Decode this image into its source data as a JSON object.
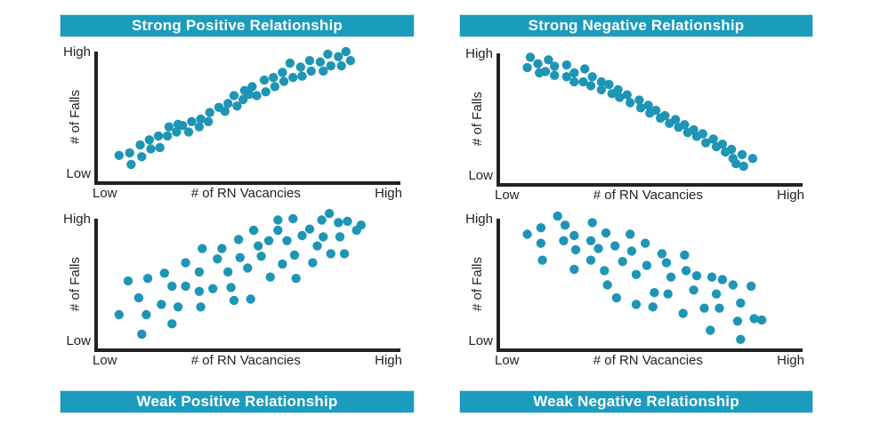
{
  "figure": {
    "background": "#ffffff",
    "accent_teal": "#1b9cbd",
    "dot_color": "#1f95b5",
    "axis_color": "#252122",
    "banner_text_color": "#ffffff"
  },
  "axis": {
    "y_top": "High",
    "y_bottom": "Low",
    "y_title": "# of Falls",
    "x_left": "Low",
    "x_right": "High",
    "x_title": "# of RN Vacancies"
  },
  "panels": [
    {
      "id": "strong-positive",
      "title": "Strong Positive Relationship",
      "banner_position": "top"
    },
    {
      "id": "strong-negative",
      "title": "Strong Negative Relationship",
      "banner_position": "top"
    },
    {
      "id": "weak-positive",
      "title": "Weak Positive Relationship",
      "banner_position": "bottom"
    },
    {
      "id": "weak-negative",
      "title": "Weak Negative Relationship",
      "banner_position": "bottom"
    }
  ],
  "chart_data": [
    {
      "type": "scatter",
      "title": "Strong Positive Relationship",
      "xlabel": "# of RN Vacancies",
      "ylabel": "# of Falls",
      "x_range_labels": [
        "Low",
        "High"
      ],
      "y_range_labels": [
        "Low",
        "High"
      ],
      "x_range": [
        0,
        100
      ],
      "y_range": [
        0,
        100
      ],
      "grid": false,
      "legend": false,
      "points": [
        [
          7,
          20
        ],
        [
          10.5,
          22
        ],
        [
          11,
          13
        ],
        [
          14,
          28
        ],
        [
          14.5,
          19
        ],
        [
          17,
          32
        ],
        [
          17.5,
          25
        ],
        [
          20,
          35
        ],
        [
          20.5,
          26
        ],
        [
          23,
          35
        ],
        [
          23.5,
          42
        ],
        [
          26,
          38
        ],
        [
          26.5,
          44
        ],
        [
          28,
          43
        ],
        [
          30,
          38
        ],
        [
          31,
          46
        ],
        [
          33.5,
          42
        ],
        [
          34,
          48
        ],
        [
          36.5,
          46
        ],
        [
          37,
          53
        ],
        [
          40,
          57
        ],
        [
          42,
          54
        ],
        [
          43,
          60
        ],
        [
          45,
          66
        ],
        [
          46,
          58
        ],
        [
          48,
          63
        ],
        [
          48.5,
          70
        ],
        [
          50,
          67
        ],
        [
          51,
          73
        ],
        [
          52.5,
          66
        ],
        [
          55,
          78
        ],
        [
          55.5,
          69
        ],
        [
          58,
          80
        ],
        [
          58.5,
          73
        ],
        [
          61,
          84
        ],
        [
          61.5,
          77
        ],
        [
          63.5,
          91
        ],
        [
          64.5,
          80
        ],
        [
          67,
          88
        ],
        [
          67.5,
          81
        ],
        [
          70,
          93
        ],
        [
          70.5,
          85
        ],
        [
          73.5,
          92
        ],
        [
          74.5,
          85
        ],
        [
          76,
          98
        ],
        [
          77,
          89
        ],
        [
          79.5,
          96
        ],
        [
          80.5,
          89
        ],
        [
          82,
          100
        ],
        [
          83.5,
          93
        ]
      ]
    },
    {
      "type": "scatter",
      "title": "Strong Negative Relationship",
      "xlabel": "# of RN Vacancies",
      "ylabel": "# of Falls",
      "x_range_labels": [
        "Low",
        "High"
      ],
      "y_range_labels": [
        "Low",
        "High"
      ],
      "x_range": [
        0,
        100
      ],
      "y_range": [
        0,
        100
      ],
      "grid": false,
      "legend": false,
      "points": [
        [
          9,
          89
        ],
        [
          10,
          97
        ],
        [
          12.5,
          92
        ],
        [
          13,
          85
        ],
        [
          15,
          86
        ],
        [
          16,
          95
        ],
        [
          18,
          90
        ],
        [
          18,
          83
        ],
        [
          22,
          91
        ],
        [
          22,
          82
        ],
        [
          24.5,
          85
        ],
        [
          24.5,
          78
        ],
        [
          27.5,
          78
        ],
        [
          28,
          88
        ],
        [
          30,
          75
        ],
        [
          30.5,
          82
        ],
        [
          33.5,
          78
        ],
        [
          33.5,
          72
        ],
        [
          36,
          76
        ],
        [
          37,
          69
        ],
        [
          39,
          72
        ],
        [
          39.5,
          66
        ],
        [
          42,
          68
        ],
        [
          43,
          62
        ],
        [
          46,
          64
        ],
        [
          46.5,
          58
        ],
        [
          49,
          60
        ],
        [
          49.5,
          54
        ],
        [
          51.5,
          56
        ],
        [
          53,
          50
        ],
        [
          54.5,
          52
        ],
        [
          56,
          46
        ],
        [
          58,
          49
        ],
        [
          59,
          43
        ],
        [
          61,
          45
        ],
        [
          62,
          39
        ],
        [
          64,
          41
        ],
        [
          65,
          36
        ],
        [
          67,
          38
        ],
        [
          68,
          31
        ],
        [
          70.5,
          34
        ],
        [
          71.5,
          28
        ],
        [
          73.5,
          30
        ],
        [
          74.5,
          24
        ],
        [
          76.5,
          26
        ],
        [
          77,
          19
        ],
        [
          78,
          15
        ],
        [
          80,
          22
        ],
        [
          80.5,
          13
        ],
        [
          83.5,
          19
        ]
      ]
    },
    {
      "type": "scatter",
      "title": "Weak Positive Relationship",
      "xlabel": "# of RN Vacancies",
      "ylabel": "# of Falls",
      "x_range_labels": [
        "Low",
        "High"
      ],
      "y_range_labels": [
        "Low",
        "High"
      ],
      "x_range": [
        0,
        100
      ],
      "y_range": [
        0,
        100
      ],
      "grid": false,
      "legend": false,
      "points": [
        [
          7,
          26
        ],
        [
          10,
          52
        ],
        [
          13.5,
          39
        ],
        [
          14.5,
          11
        ],
        [
          16,
          26
        ],
        [
          16.5,
          54
        ],
        [
          21,
          34
        ],
        [
          22,
          58
        ],
        [
          24.5,
          48
        ],
        [
          24.5,
          19
        ],
        [
          26.5,
          32
        ],
        [
          29,
          66
        ],
        [
          29,
          48
        ],
        [
          33.5,
          44
        ],
        [
          34,
          32
        ],
        [
          34.5,
          77
        ],
        [
          33.5,
          59
        ],
        [
          38,
          46
        ],
        [
          39.5,
          69
        ],
        [
          41,
          77
        ],
        [
          43,
          59
        ],
        [
          44,
          47
        ],
        [
          45,
          37
        ],
        [
          46.5,
          84
        ],
        [
          47,
          70
        ],
        [
          49.5,
          62
        ],
        [
          50.5,
          38
        ],
        [
          51.5,
          91
        ],
        [
          53,
          79
        ],
        [
          54,
          71
        ],
        [
          56.5,
          83
        ],
        [
          57,
          55
        ],
        [
          59.5,
          99
        ],
        [
          59.5,
          91
        ],
        [
          61,
          65
        ],
        [
          62.5,
          83
        ],
        [
          64.5,
          100
        ],
        [
          65,
          72
        ],
        [
          65.5,
          54
        ],
        [
          67.5,
          87
        ],
        [
          70,
          92
        ],
        [
          71,
          66
        ],
        [
          72.5,
          79
        ],
        [
          74,
          99
        ],
        [
          74.5,
          86
        ],
        [
          76.5,
          104
        ],
        [
          77,
          73
        ],
        [
          79.5,
          97
        ],
        [
          80,
          86
        ],
        [
          81.5,
          73
        ],
        [
          82.5,
          98
        ],
        [
          85.5,
          91
        ],
        [
          87,
          95
        ]
      ]
    },
    {
      "type": "scatter",
      "title": "Weak Negative Relationship",
      "xlabel": "# of RN Vacancies",
      "ylabel": "# of Falls",
      "x_range_labels": [
        "Low",
        "High"
      ],
      "y_range_labels": [
        "Low",
        "High"
      ],
      "x_range": [
        0,
        100
      ],
      "y_range": [
        0,
        100
      ],
      "grid": false,
      "legend": false,
      "points": [
        [
          9,
          88
        ],
        [
          13.5,
          93
        ],
        [
          13.5,
          81
        ],
        [
          14,
          68
        ],
        [
          19,
          102
        ],
        [
          21,
          83
        ],
        [
          21.5,
          95
        ],
        [
          24.5,
          87
        ],
        [
          25,
          76
        ],
        [
          24.5,
          61
        ],
        [
          30,
          83
        ],
        [
          30,
          68
        ],
        [
          30.5,
          97
        ],
        [
          32.5,
          77
        ],
        [
          34.5,
          60
        ],
        [
          35,
          89
        ],
        [
          35.5,
          49
        ],
        [
          38,
          79
        ],
        [
          38.5,
          39
        ],
        [
          40.5,
          67
        ],
        [
          43,
          88
        ],
        [
          43.5,
          75
        ],
        [
          45,
          57
        ],
        [
          45,
          34
        ],
        [
          48,
          81
        ],
        [
          48.5,
          64
        ],
        [
          50.5,
          32
        ],
        [
          51,
          43
        ],
        [
          53.5,
          73
        ],
        [
          55,
          66
        ],
        [
          55.5,
          42
        ],
        [
          56.5,
          55
        ],
        [
          60.5,
          27
        ],
        [
          61,
          72
        ],
        [
          61.5,
          60
        ],
        [
          64,
          45
        ],
        [
          65,
          56
        ],
        [
          67.5,
          31
        ],
        [
          69.5,
          14
        ],
        [
          70,
          55
        ],
        [
          71.5,
          42
        ],
        [
          72.5,
          31
        ],
        [
          73.5,
          53
        ],
        [
          77,
          49
        ],
        [
          78.5,
          21
        ],
        [
          79.5,
          7
        ],
        [
          79.5,
          35
        ],
        [
          83,
          48
        ],
        [
          84,
          23
        ],
        [
          86.5,
          22
        ]
      ]
    }
  ]
}
